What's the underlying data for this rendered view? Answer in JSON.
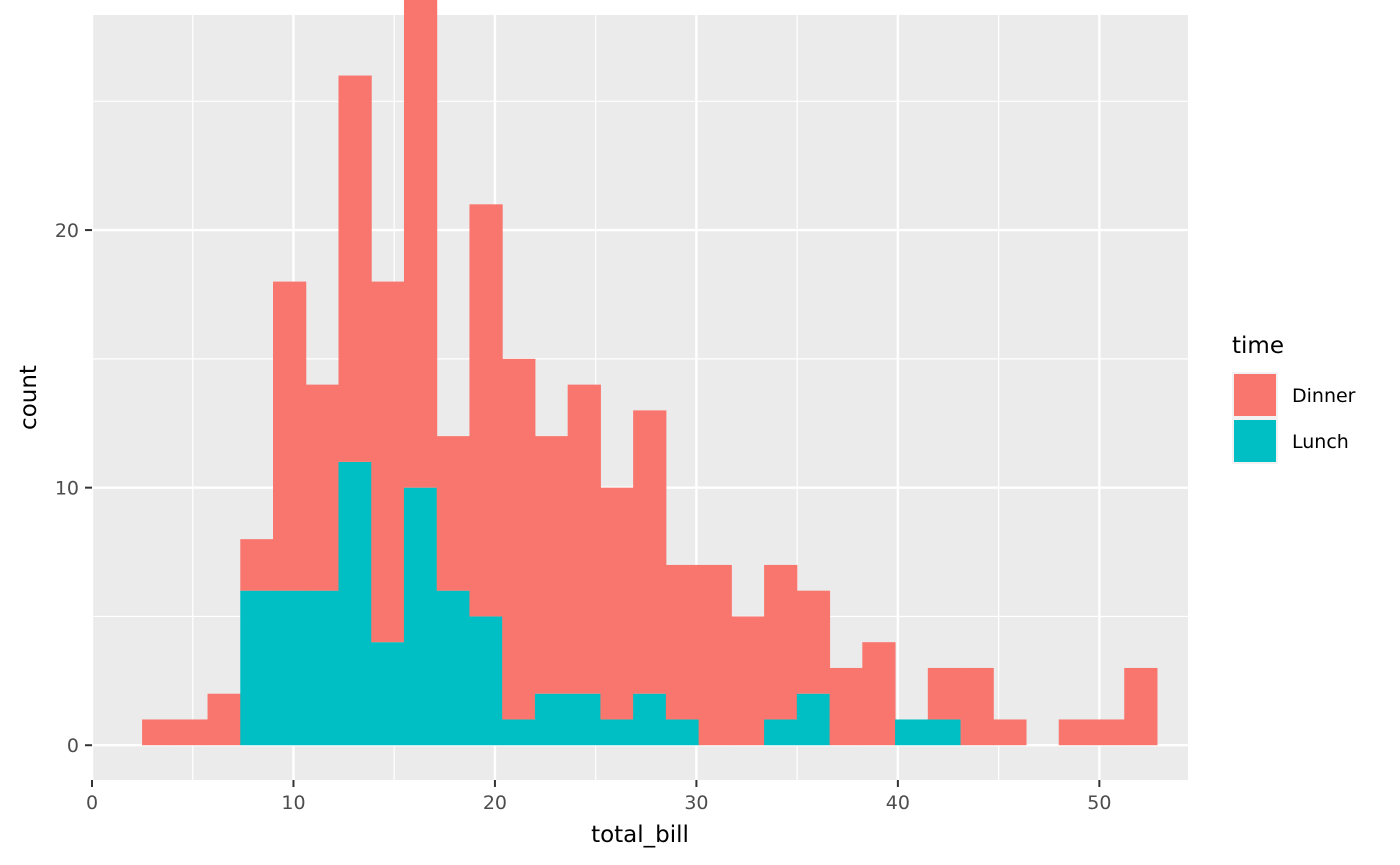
{
  "chart_data": {
    "type": "bar",
    "subtype": "stacked-histogram",
    "title": "",
    "xlabel": "total_bill",
    "ylabel": "count",
    "xlim": [
      0,
      54.4
    ],
    "ylim": [
      -1.35,
      28.35
    ],
    "x_ticks": [
      0,
      10,
      20,
      30,
      40,
      50
    ],
    "y_ticks": [
      0,
      10,
      20
    ],
    "grid": true,
    "panel_background": "#ebebeb",
    "legend": {
      "title": "time",
      "position": "right"
    },
    "bins": {
      "start": 2.485,
      "width": 1.625,
      "count": 30
    },
    "series": [
      {
        "name": "Dinner",
        "color": "#f8766d",
        "values": [
          1,
          1,
          2,
          2,
          12,
          8,
          15,
          14,
          23,
          6,
          16,
          14,
          10,
          12,
          9,
          11,
          6,
          7,
          5,
          6,
          4,
          3,
          4,
          0,
          2,
          3,
          1,
          0,
          1,
          1
        ]
      },
      {
        "name": "Lunch",
        "color": "#00bfc4",
        "values": [
          0,
          0,
          0,
          6,
          6,
          6,
          11,
          4,
          10,
          6,
          5,
          1,
          2,
          2,
          1,
          2,
          1,
          0,
          0,
          1,
          2,
          0,
          0,
          1,
          1,
          0,
          0,
          0,
          0,
          0
        ]
      }
    ],
    "extra_bins": [
      {
        "series": "Dinner",
        "bin_index": 30,
        "count": 3,
        "label": ""
      }
    ]
  }
}
